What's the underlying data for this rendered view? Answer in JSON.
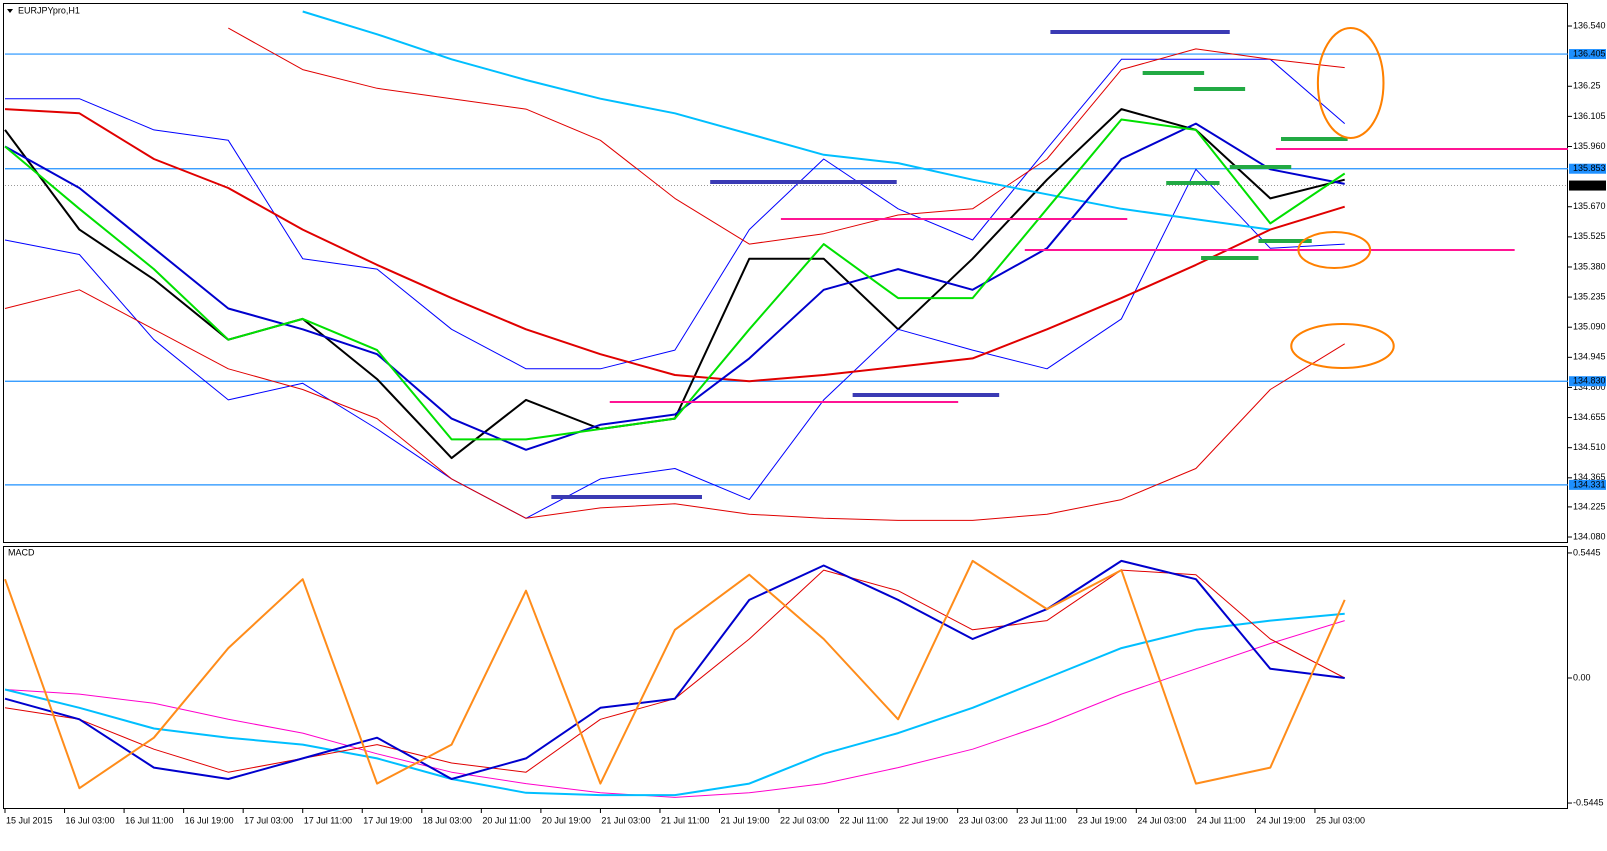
{
  "chart_data": [
    {
      "type": "line",
      "title": "EURJPYpro,H1",
      "x": [
        0,
        10,
        20,
        30,
        40,
        50,
        60,
        70,
        80,
        90,
        100,
        110,
        120,
        130,
        140,
        150,
        160,
        170,
        180
      ],
      "xlim": [
        0,
        210
      ],
      "xticks": [
        {
          "value": 0,
          "label": "15 Jul 2015"
        },
        {
          "value": 8,
          "label": "16 Jul 03:00"
        },
        {
          "value": 16,
          "label": "16 Jul 11:00"
        },
        {
          "value": 24,
          "label": "16 Jul 19:00"
        },
        {
          "value": 32,
          "label": "17 Jul 03:00"
        },
        {
          "value": 40,
          "label": "17 Jul 11:00"
        },
        {
          "value": 48,
          "label": "17 Jul 19:00"
        },
        {
          "value": 56,
          "label": "18 Jul 03:00"
        },
        {
          "value": 64,
          "label": "20 Jul 11:00"
        },
        {
          "value": 72,
          "label": "20 Jul 19:00"
        },
        {
          "value": 80,
          "label": "21 Jul 03:00"
        },
        {
          "value": 88,
          "label": "21 Jul 11:00"
        },
        {
          "value": 96,
          "label": "21 Jul 19:00"
        },
        {
          "value": 104,
          "label": "22 Jul 03:00"
        },
        {
          "value": 112,
          "label": "22 Jul 11:00"
        },
        {
          "value": 120,
          "label": "22 Jul 19:00"
        },
        {
          "value": 128,
          "label": "23 Jul 03:00"
        },
        {
          "value": 136,
          "label": "23 Jul 11:00"
        },
        {
          "value": 144,
          "label": "23 Jul 19:00"
        },
        {
          "value": 152,
          "label": "24 Jul 03:00"
        },
        {
          "value": 160,
          "label": "24 Jul 11:00"
        },
        {
          "value": 168,
          "label": "24 Jul 19:00"
        },
        {
          "value": 176,
          "label": "25 Jul 03:00"
        }
      ],
      "ylim": [
        134.056,
        136.646
      ],
      "yticks": [
        {
          "value": 136.54,
          "label": "136.540"
        },
        136.25,
        {
          "value": 136.105,
          "label": "136.105"
        },
        {
          "value": 135.96,
          "label": "135.960"
        },
        {
          "value": 135.67,
          "label": "135.670"
        },
        135.525,
        {
          "value": 135.38,
          "label": "135.380"
        },
        135.235,
        {
          "value": 135.09,
          "label": "135.090"
        },
        134.945,
        {
          "value": 134.8,
          "label": "134.800"
        },
        134.655,
        {
          "value": 134.51,
          "label": "134.510"
        },
        134.365,
        134.225,
        {
          "value": 134.08,
          "label": "134.080"
        }
      ],
      "levels": [
        {
          "value": 136.405,
          "label": "136.405"
        },
        {
          "value": 135.853,
          "label": "135.853"
        },
        {
          "value": 134.83,
          "label": "134.830"
        },
        {
          "value": 134.331,
          "label": "134.331"
        }
      ],
      "level_color": "#1e90ff",
      "current": {
        "value": 135.772,
        "label": "135.772"
      },
      "series": [
        {
          "color": "#000000",
          "style": "thick",
          "values": [
            136.04,
            135.56,
            135.32,
            135.03,
            135.13,
            134.84,
            134.46,
            134.74,
            134.6,
            134.65,
            135.42,
            135.42,
            135.08,
            135.42,
            135.8,
            136.14,
            136.04,
            135.71,
            135.8
          ]
        },
        {
          "color": "#0000ff",
          "style": "thin",
          "values": [
            136.19,
            136.19,
            136.04,
            135.99,
            135.42,
            135.37,
            135.08,
            134.89,
            134.89,
            134.98,
            135.56,
            135.9,
            135.66,
            135.51,
            135.95,
            136.38,
            136.38,
            136.38,
            136.07
          ]
        },
        {
          "color": "#0000ff",
          "style": "thin",
          "values": [
            135.51,
            135.44,
            135.03,
            134.74,
            134.82,
            134.6,
            134.36,
            134.17,
            134.36,
            134.41,
            134.26,
            134.74,
            135.08,
            134.98,
            134.89,
            135.13,
            135.85,
            135.47,
            135.49
          ]
        },
        {
          "color": "#e00000",
          "style": "thin",
          "values": [
            null,
            null,
            null,
            136.53,
            136.33,
            136.24,
            136.19,
            136.14,
            135.99,
            135.71,
            135.49,
            135.54,
            135.63,
            135.66,
            135.9,
            136.33,
            136.43,
            136.38,
            136.34
          ]
        },
        {
          "color": "#e00000",
          "style": "thin",
          "values": [
            135.18,
            135.27,
            135.08,
            134.89,
            134.79,
            134.65,
            134.36,
            134.17,
            134.22,
            134.24,
            134.19,
            134.17,
            134.16,
            134.16,
            134.19,
            134.26,
            134.41,
            134.79,
            135.01
          ]
        },
        {
          "color": "#00bfff",
          "style": "thick",
          "values": [
            null,
            null,
            null,
            null,
            136.61,
            136.5,
            136.38,
            136.28,
            136.19,
            136.12,
            136.02,
            135.92,
            135.88,
            135.8,
            135.73,
            135.66,
            135.61,
            135.56,
            null
          ]
        },
        {
          "color": "#e00000",
          "style": "thick",
          "values": [
            136.14,
            136.12,
            135.9,
            135.76,
            135.56,
            135.39,
            135.23,
            135.08,
            134.96,
            134.86,
            134.83,
            134.86,
            134.9,
            134.94,
            135.08,
            135.23,
            135.39,
            135.56,
            135.67
          ]
        },
        {
          "color": "#0000cd",
          "style": "thick",
          "values": [
            135.96,
            135.76,
            135.47,
            135.18,
            135.08,
            134.96,
            134.65,
            134.5,
            134.62,
            134.67,
            134.94,
            135.27,
            135.37,
            135.27,
            135.47,
            135.9,
            136.07,
            135.85,
            135.78
          ]
        },
        {
          "color": "#00e000",
          "style": "thick",
          "values": [
            135.96,
            135.66,
            135.37,
            135.03,
            135.13,
            134.98,
            134.55,
            134.55,
            134.6,
            134.65,
            135.08,
            135.49,
            135.23,
            135.23,
            135.66,
            136.09,
            136.04,
            135.59,
            135.83
          ]
        }
      ]
    },
    {
      "type": "line",
      "title": "MACD",
      "x": [
        0,
        10,
        20,
        30,
        40,
        50,
        60,
        70,
        80,
        90,
        100,
        110,
        120,
        130,
        140,
        150,
        160,
        170,
        180
      ],
      "xlim": [
        0,
        210
      ],
      "ylim": [
        -0.5661,
        0.5704
      ],
      "yticks": [
        {
          "value": 0.5445,
          "label": "0.5445"
        },
        {
          "value": 0,
          "label": "0.00"
        },
        {
          "value": -0.5445,
          "label": "-0.5445"
        }
      ],
      "series": [
        {
          "color": "#ff00cc",
          "style": "thin",
          "values": [
            -0.05,
            -0.07,
            -0.11,
            -0.18,
            -0.24,
            -0.33,
            -0.41,
            -0.46,
            -0.5,
            -0.52,
            -0.5,
            -0.46,
            -0.39,
            -0.31,
            -0.2,
            -0.07,
            0.04,
            0.15,
            0.25
          ]
        },
        {
          "color": "#00bfff",
          "style": "thick",
          "values": [
            -0.05,
            -0.13,
            -0.22,
            -0.26,
            -0.29,
            -0.35,
            -0.44,
            -0.5,
            -0.51,
            -0.51,
            -0.46,
            -0.33,
            -0.24,
            -0.13,
            0,
            0.13,
            0.21,
            0.25,
            0.28
          ]
        },
        {
          "color": "#e00000",
          "style": "thin",
          "values": [
            -0.13,
            -0.18,
            -0.31,
            -0.41,
            -0.35,
            -0.29,
            -0.37,
            -0.41,
            -0.18,
            -0.09,
            0.17,
            0.47,
            0.38,
            0.21,
            0.25,
            0.47,
            0.45,
            0.17,
            0
          ]
        },
        {
          "color": "#0000cd",
          "style": "thick",
          "values": [
            -0.09,
            -0.18,
            -0.39,
            -0.44,
            -0.35,
            -0.26,
            -0.44,
            -0.35,
            -0.13,
            -0.09,
            0.34,
            0.49,
            0.34,
            0.17,
            0.3,
            0.51,
            0.43,
            0.04,
            0
          ]
        },
        {
          "color": "#ff8c1a",
          "style": "thick",
          "values": [
            0.43,
            -0.48,
            -0.26,
            0.13,
            0.43,
            -0.46,
            -0.29,
            0.38,
            -0.46,
            0.21,
            0.45,
            0.17,
            -0.18,
            0.51,
            0.3,
            0.47,
            -0.46,
            -0.39,
            0.34
          ]
        }
      ]
    }
  ]
}
